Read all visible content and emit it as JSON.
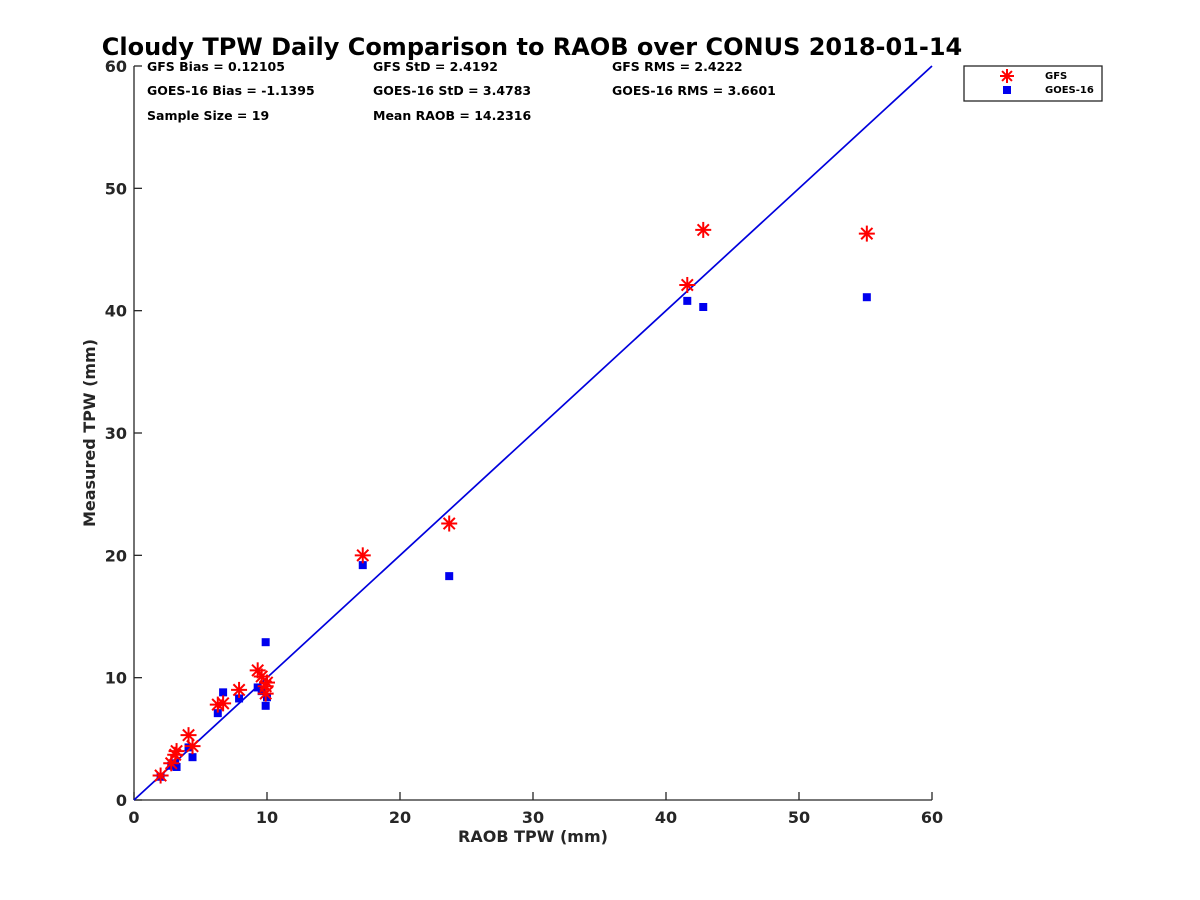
{
  "chart_data": {
    "type": "scatter",
    "title": "Cloudy TPW Daily Comparison to RAOB over CONUS 2018-01-14",
    "xlabel": "RAOB TPW (mm)",
    "ylabel": "Measured TPW (mm)",
    "xlim": [
      0,
      60
    ],
    "ylim": [
      0,
      60
    ],
    "xticks": [
      "0",
      "10",
      "20",
      "30",
      "40",
      "50",
      "60"
    ],
    "yticks": [
      "0",
      "10",
      "20",
      "30",
      "40",
      "50",
      "60"
    ],
    "grid": false,
    "legend_position": "top-right-outside",
    "reference_line": {
      "from": [
        0,
        0
      ],
      "to": [
        60,
        60
      ],
      "color": "#0000dd"
    },
    "stats": {
      "gfs_bias": "GFS Bias = 0.12105",
      "gfs_std": "GFS StD = 2.4192",
      "gfs_rms": "GFS RMS = 2.4222",
      "goes_bias": "GOES-16 Bias = -1.1395",
      "goes_std": "GOES-16 StD = 3.4783",
      "goes_rms": "GOES-16 RMS = 3.6601",
      "sample_size": "Sample Size = 19",
      "mean_raob": "Mean RAOB = 14.2316"
    },
    "series": [
      {
        "name": "GFS",
        "marker": "asterisk",
        "color": "#ff0000",
        "x": [
          2.0,
          2.8,
          3.1,
          3.2,
          4.1,
          4.4,
          6.3,
          6.7,
          7.9,
          9.3,
          9.6,
          9.9,
          9.9,
          10.0,
          17.2,
          23.7,
          41.6,
          42.8,
          55.1
        ],
        "y": [
          2.0,
          3.0,
          3.7,
          4.0,
          5.3,
          4.4,
          7.8,
          7.9,
          9.0,
          10.6,
          10.1,
          9.3,
          8.7,
          9.6,
          20.0,
          22.6,
          42.1,
          46.6,
          46.3
        ]
      },
      {
        "name": "GOES-16",
        "marker": "square",
        "color": "#0000ee",
        "x": [
          2.0,
          2.8,
          3.1,
          3.2,
          4.1,
          4.4,
          6.3,
          6.7,
          7.9,
          9.3,
          9.6,
          9.9,
          9.9,
          10.0,
          17.2,
          23.7,
          41.6,
          42.8,
          55.1
        ],
        "y": [
          1.9,
          2.8,
          3.0,
          2.7,
          4.3,
          3.5,
          7.1,
          8.8,
          8.3,
          9.2,
          8.9,
          7.7,
          12.9,
          8.4,
          19.2,
          18.3,
          40.8,
          40.3,
          41.1
        ]
      }
    ]
  }
}
